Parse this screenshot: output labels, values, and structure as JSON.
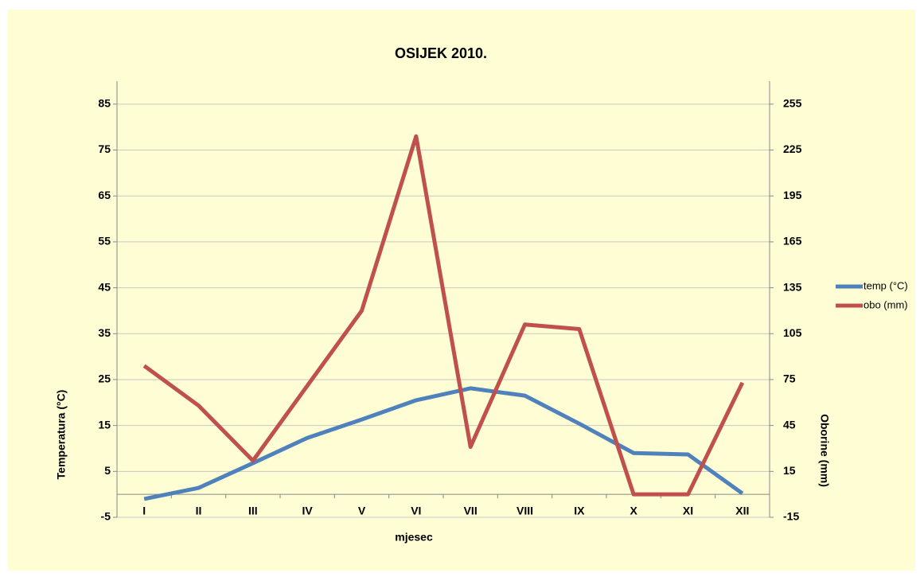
{
  "chart_data": {
    "type": "line",
    "title": "OSIJEK 2010.",
    "xlabel": "mjesec",
    "ylabel": "Temperatura (°C)",
    "y2label": "Oborine  (mm)",
    "categories": [
      "I",
      "II",
      "III",
      "IV",
      "V",
      "VI",
      "VII",
      "VIII",
      "IX",
      "X",
      "XI",
      "XII"
    ],
    "series": [
      {
        "name": "temp (°C)",
        "color": "#4f81bd",
        "values": [
          -1.0,
          1.4,
          6.8,
          12.3,
          16.3,
          20.5,
          23.1,
          21.5,
          15.4,
          9.0,
          8.7,
          0.2
        ]
      },
      {
        "name": "obo (mm)",
        "color": "#c0504d",
        "axis": "y2",
        "values": [
          84,
          58,
          22,
          71,
          120,
          234,
          31,
          111,
          108,
          0,
          0,
          73
        ]
      }
    ],
    "ylim": [
      -5,
      90
    ],
    "yticks": [
      -5,
      5,
      15,
      25,
      35,
      45,
      55,
      65,
      75,
      85
    ],
    "y2lim": [
      -15,
      270
    ],
    "y2ticks": [
      -15,
      15,
      45,
      75,
      105,
      135,
      165,
      195,
      225,
      255
    ],
    "grid": true,
    "legend": "right"
  }
}
